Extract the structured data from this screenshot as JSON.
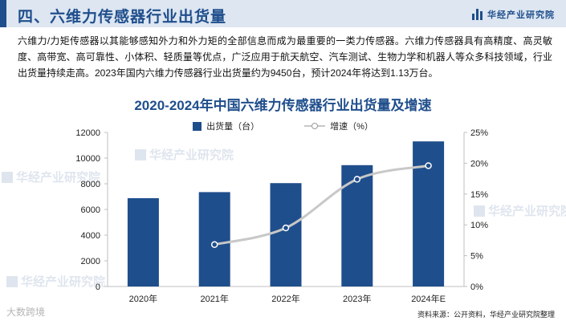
{
  "header": {
    "section_title": "四、六维力传感器行业出货量",
    "brand_text": "华经产业研究院"
  },
  "intro_text": "六维力/力矩传感器以其能够感知外力和外力矩的全部信息而成为最重要的一类力传感器。六维力传感器具有高精度、高灵敏度、高带宽、高可靠性、小体积、轻质量等优点，广泛应用于航天航空、汽车测试、生物力学和机器人等众多科技领域，行业出货量持续走高。2023年国内六维力传感器行业出货量约为9450台，预计2024年将达到1.13万台。",
  "watermark_text": "华经产业研究院",
  "corner_mark": "大数跨境",
  "source_text": "资料来源：公开资料，华经产业研究院整理",
  "colors": {
    "bar": "#1f4e8c",
    "line": "#c8c8c8",
    "marker": "#1f4e8c",
    "title": "#1f4e8c"
  },
  "chart_data": {
    "type": "bar",
    "title": "2020-2024年中国六维力传感器行业出货量及增速",
    "categories": [
      "2020年",
      "2021年",
      "2022年",
      "2023年",
      "2024年E"
    ],
    "series": [
      {
        "name": "出货量（台）",
        "type": "bar",
        "axis": "left",
        "values": [
          6880,
          7350,
          8050,
          9450,
          11300
        ]
      },
      {
        "name": "增速（%）",
        "type": "line",
        "axis": "right",
        "values": [
          null,
          6.8,
          9.5,
          17.4,
          19.6
        ]
      }
    ],
    "y_left": {
      "min": 0,
      "max": 12000,
      "ticks": [
        "0",
        "2000",
        "4000",
        "6000",
        "8000",
        "10000",
        "12000"
      ]
    },
    "y_right": {
      "min": 0,
      "max": 25,
      "ticks": [
        "0%",
        "5%",
        "10%",
        "15%",
        "20%",
        "25%"
      ]
    },
    "legend_position": "top-center",
    "grid": false
  }
}
